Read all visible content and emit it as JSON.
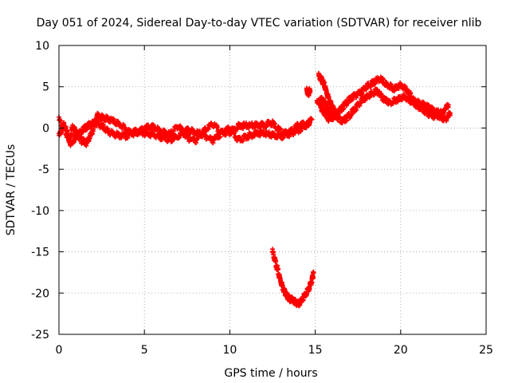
{
  "chart_data": {
    "type": "scatter",
    "title": "Day 051 of 2024, Sidereal Day-to-day VTEC variation (SDTVAR) for receiver nlib",
    "xlabel": "GPS time / hours",
    "ylabel": "SDTVAR / TECUs",
    "xlim": [
      0,
      25
    ],
    "ylim": [
      -25,
      10
    ],
    "xticks": [
      0,
      5,
      10,
      15,
      20,
      25
    ],
    "xtick_labels": [
      "0",
      "5",
      "10",
      "15",
      "20",
      "25"
    ],
    "yticks": [
      10,
      5,
      0,
      -5,
      -10,
      -15,
      -20,
      -25
    ],
    "ytick_labels": [
      "10",
      "5",
      "0",
      "-5",
      "-10",
      "-15",
      "-20",
      "-25"
    ],
    "grid": true,
    "marker": "+",
    "series": [
      {
        "name": "track-a",
        "color": "#ff0000",
        "points": [
          [
            0,
            -1
          ],
          [
            0.3,
            0.5
          ],
          [
            0.6,
            -1.5
          ],
          [
            0.8,
            0.2
          ],
          [
            1.0,
            -0.5
          ],
          [
            1.3,
            -1.5
          ],
          [
            1.6,
            -1.8
          ],
          [
            1.9,
            -0.8
          ],
          [
            2.2,
            1.5
          ],
          [
            2.6,
            1.2
          ],
          [
            3.0,
            1.0
          ],
          [
            3.5,
            0.5
          ],
          [
            4.0,
            -0.3
          ],
          [
            4.5,
            -0.8
          ],
          [
            5.0,
            0
          ],
          [
            5.5,
            0.1
          ],
          [
            6.0,
            -0.4
          ],
          [
            6.5,
            -0.8
          ],
          [
            7.0,
            0.3
          ],
          [
            7.5,
            -1.2
          ],
          [
            8.0,
            -1.5
          ],
          [
            8.5,
            -0.4
          ],
          [
            9.0,
            0.5
          ],
          [
            9.5,
            -0.6
          ],
          [
            10.0,
            -0.5
          ],
          [
            10.5,
            0.2
          ],
          [
            11.0,
            0.3
          ],
          [
            11.5,
            0.3
          ],
          [
            12.0,
            0.4
          ],
          [
            12.5,
            0.6
          ],
          [
            13.0,
            -0.5
          ],
          [
            13.5,
            -0.8
          ],
          [
            14.0,
            -0.3
          ],
          [
            14.5,
            0.4
          ],
          [
            14.8,
            1.0
          ]
        ]
      },
      {
        "name": "track-b",
        "color": "#ff0000",
        "points": [
          [
            0,
            1.0
          ],
          [
            0.4,
            -0.5
          ],
          [
            0.7,
            -2.0
          ],
          [
            1.0,
            -1.0
          ],
          [
            1.4,
            -0.2
          ],
          [
            1.8,
            0.4
          ],
          [
            2.2,
            0.6
          ],
          [
            2.6,
            0.1
          ],
          [
            3.0,
            -0.6
          ],
          [
            3.5,
            -0.9
          ],
          [
            4.0,
            -1.0
          ],
          [
            4.5,
            -0.3
          ],
          [
            5.0,
            -0.6
          ],
          [
            5.5,
            -0.8
          ],
          [
            6.0,
            -1.2
          ],
          [
            6.5,
            -1.5
          ],
          [
            7.0,
            -1.0
          ],
          [
            7.5,
            -0.3
          ],
          [
            8.0,
            -0.5
          ],
          [
            8.5,
            -0.9
          ],
          [
            9.0,
            -1.5
          ],
          [
            9.5,
            -0.7
          ],
          [
            10.0,
            0
          ],
          [
            10.5,
            -1.5
          ],
          [
            11.0,
            -1.0
          ],
          [
            11.5,
            -0.7
          ],
          [
            12.0,
            -0.6
          ],
          [
            12.5,
            -0.9
          ],
          [
            13.0,
            -1.0
          ],
          [
            13.5,
            -0.5
          ],
          [
            14.0,
            0.3
          ],
          [
            14.5,
            0.5
          ]
        ]
      },
      {
        "name": "track-c",
        "color": "#ff0000",
        "points": [
          [
            15.3,
            2.5
          ],
          [
            15.5,
            2.0
          ],
          [
            15.8,
            1.0
          ],
          [
            16.2,
            1.5
          ],
          [
            16.6,
            0.8
          ],
          [
            17.0,
            1.5
          ],
          [
            17.4,
            2.5
          ],
          [
            17.8,
            3.5
          ],
          [
            18.2,
            4.0
          ],
          [
            18.6,
            4.5
          ],
          [
            19.0,
            3.5
          ],
          [
            19.4,
            3.0
          ],
          [
            19.8,
            3.5
          ],
          [
            20.2,
            3.8
          ],
          [
            20.6,
            3.2
          ],
          [
            21.0,
            2.6
          ],
          [
            21.4,
            2.0
          ],
          [
            21.8,
            1.5
          ],
          [
            22.2,
            1.5
          ],
          [
            22.6,
            1.0
          ],
          [
            22.9,
            1.8
          ]
        ]
      },
      {
        "name": "track-d",
        "color": "#ff0000",
        "points": [
          [
            15.1,
            3.0
          ],
          [
            15.4,
            3.5
          ],
          [
            15.7,
            2.5
          ],
          [
            16.0,
            1.5
          ],
          [
            16.4,
            2.0
          ],
          [
            16.8,
            3.0
          ],
          [
            17.2,
            3.8
          ],
          [
            17.6,
            4.2
          ],
          [
            18.0,
            5.0
          ],
          [
            18.4,
            5.5
          ],
          [
            18.8,
            6.0
          ],
          [
            19.2,
            5.2
          ],
          [
            19.6,
            4.8
          ],
          [
            20.0,
            5.2
          ],
          [
            20.4,
            4.5
          ],
          [
            20.8,
            3.2
          ],
          [
            21.2,
            3.0
          ],
          [
            21.6,
            2.5
          ],
          [
            22.0,
            2.0
          ],
          [
            22.4,
            1.8
          ],
          [
            22.8,
            2.8
          ]
        ]
      },
      {
        "name": "track-e",
        "color": "#ff0000",
        "points": [
          [
            15.2,
            6.3
          ],
          [
            15.4,
            5.8
          ],
          [
            15.6,
            4.8
          ],
          [
            15.8,
            3.5
          ],
          [
            16.0,
            2.5
          ],
          [
            16.2,
            1.8
          ]
        ]
      },
      {
        "name": "track-f",
        "color": "#ff0000",
        "points": [
          [
            14.5,
            4.5
          ],
          [
            14.6,
            4.2
          ],
          [
            14.7,
            4.6
          ]
        ]
      },
      {
        "name": "track-g",
        "color": "#ff0000",
        "points": [
          [
            12.5,
            -15.0
          ],
          [
            12.7,
            -16.5
          ],
          [
            12.9,
            -18.0
          ],
          [
            13.1,
            -19.3
          ],
          [
            13.3,
            -20.2
          ],
          [
            13.5,
            -20.7
          ],
          [
            13.8,
            -21.0
          ],
          [
            14.0,
            -21.4
          ],
          [
            14.3,
            -20.6
          ],
          [
            14.6,
            -19.6
          ],
          [
            14.8,
            -18.5
          ],
          [
            14.9,
            -17.6
          ]
        ]
      }
    ]
  }
}
